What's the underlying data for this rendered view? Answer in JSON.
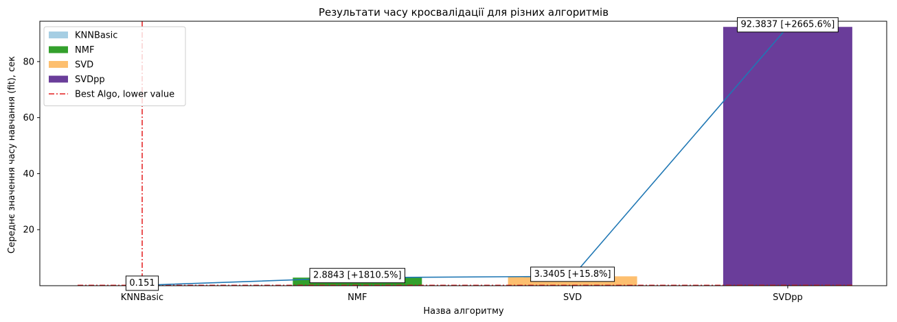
{
  "chart_data": {
    "type": "bar",
    "title": "Результати часу кросвалідації для різних алгоритмів",
    "xlabel": "Назва алгоритму",
    "ylabel": "Середнє значення часу навчання (fit), сек",
    "categories": [
      "KNNBasic",
      "NMF",
      "SVD",
      "SVDpp"
    ],
    "values": [
      0.151,
      2.8843,
      3.3405,
      92.3837
    ],
    "colors": [
      "#a6cee3",
      "#33a02c",
      "#fdbf6f",
      "#6a3d9a"
    ],
    "annotations": [
      "0.151",
      "2.8843 [+1810.5%]",
      "3.3405 [+15.8%]",
      "92.3837 [+2665.6%]"
    ],
    "line": {
      "color": "#1f77b4",
      "values": [
        0.151,
        2.8843,
        3.3405,
        92.3837
      ]
    },
    "best_algo": {
      "label": "Best Algo, lower value",
      "category": "KNNBasic",
      "value": 0.151,
      "color": "#e31a1c",
      "style": "dash-dot"
    },
    "ylim": [
      0,
      94.4
    ],
    "yticks": [
      20,
      40,
      60,
      80
    ],
    "grid": false,
    "legend": {
      "placement": "top-left",
      "entries": [
        {
          "label": "KNNBasic",
          "color": "#a6cee3",
          "kind": "patch"
        },
        {
          "label": "NMF",
          "color": "#33a02c",
          "kind": "patch"
        },
        {
          "label": "SVD",
          "color": "#fdbf6f",
          "kind": "patch"
        },
        {
          "label": "SVDpp",
          "color": "#6a3d9a",
          "kind": "patch"
        },
        {
          "label": "Best Algo, lower value",
          "color": "#e31a1c",
          "kind": "line"
        }
      ]
    }
  }
}
